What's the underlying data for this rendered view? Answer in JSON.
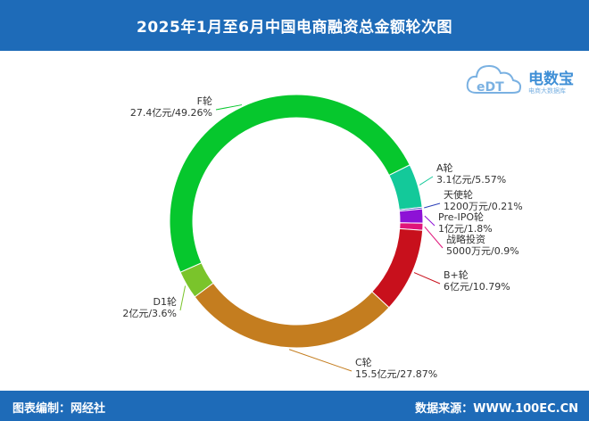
{
  "header": {
    "title": "2025年1月至6月中国电商融资总金额轮次图"
  },
  "logo": {
    "text": "电数宝",
    "sub": "电商大数据库"
  },
  "footer": {
    "left": "图表编制：网经社",
    "right": "数据来源：WWW.100EC.CN"
  },
  "chart_data": {
    "type": "pie",
    "donut": true,
    "title": "2025年1月至6月中国电商融资总金额轮次图",
    "slices": [
      {
        "name": "A轮",
        "value_label": "3.1亿元/5.57%",
        "percent": 5.57,
        "color": "#13c99a"
      },
      {
        "name": "天使轮",
        "value_label": "1200万元/0.21%",
        "percent": 0.21,
        "color": "#2b3fb8"
      },
      {
        "name": "Pre-IPO轮",
        "value_label": "1亿元/1.8%",
        "percent": 1.8,
        "color": "#8d12d6"
      },
      {
        "name": "战略投资",
        "value_label": "5000万元/0.9%",
        "percent": 0.9,
        "color": "#e0157a"
      },
      {
        "name": "B+轮",
        "value_label": "6亿元/10.79%",
        "percent": 10.79,
        "color": "#c8101c"
      },
      {
        "name": "C轮",
        "value_label": "15.5亿元/27.87%",
        "percent": 27.87,
        "color": "#c47d1f"
      },
      {
        "name": "D1轮",
        "value_label": "2亿元/3.6%",
        "percent": 3.6,
        "color": "#7ac42b"
      },
      {
        "name": "F轮",
        "value_label": "27.4亿元/49.26%",
        "percent": 49.26,
        "color": "#06c72d"
      }
    ]
  }
}
